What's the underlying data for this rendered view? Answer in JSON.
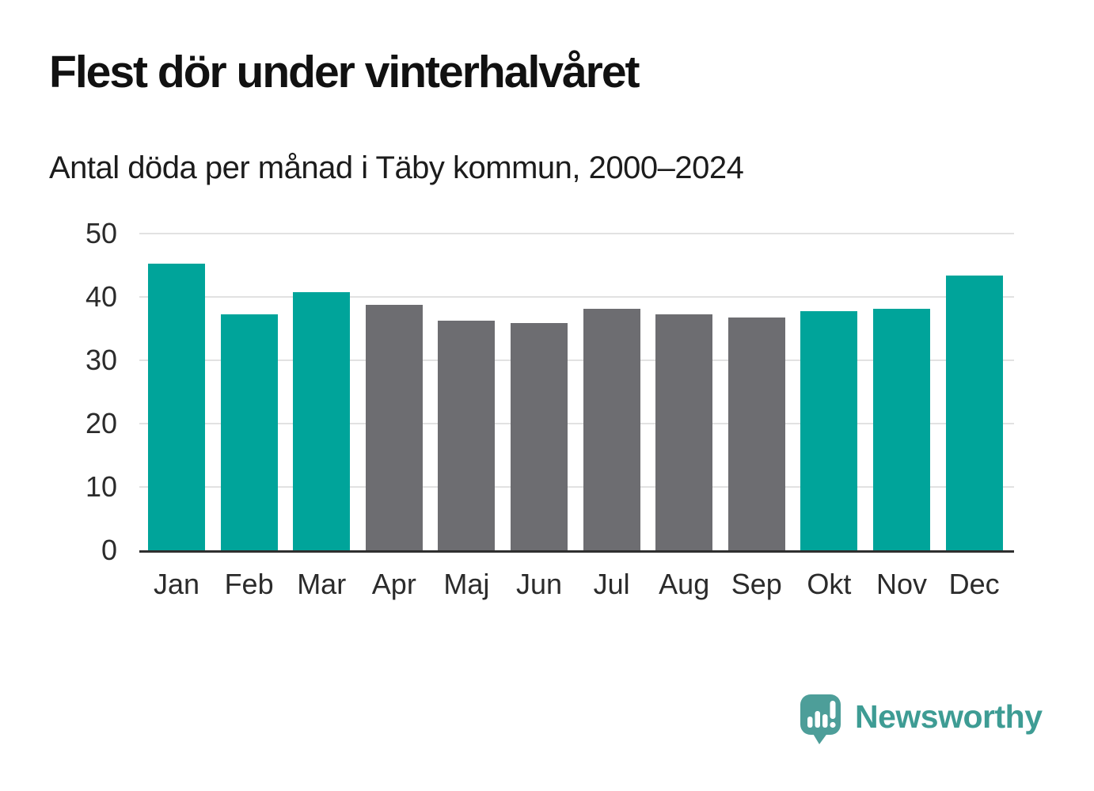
{
  "header": {
    "title": "Flest dör under vinterhalvåret",
    "subtitle": "Antal döda per månad i Täby kommun, 2000–2024"
  },
  "chart_data": {
    "type": "bar",
    "title": "Flest dör under vinterhalvåret",
    "subtitle": "Antal döda per månad i Täby kommun, 2000–2024",
    "categories": [
      "Jan",
      "Feb",
      "Mar",
      "Apr",
      "Maj",
      "Jun",
      "Jul",
      "Aug",
      "Sep",
      "Okt",
      "Nov",
      "Dec"
    ],
    "values": [
      45.3,
      37.3,
      40.8,
      38.8,
      36.3,
      35.9,
      38.1,
      37.3,
      36.8,
      37.7,
      38.1,
      43.4
    ],
    "bar_seasons": [
      "winter",
      "winter",
      "winter",
      "summer",
      "summer",
      "summer",
      "summer",
      "summer",
      "summer",
      "winter",
      "winter",
      "winter"
    ],
    "yticks": [
      0,
      10,
      20,
      30,
      40,
      50
    ],
    "ylim": [
      0,
      50
    ],
    "xlabel": "",
    "ylabel": "",
    "grid": true,
    "legend_position": "none"
  },
  "colors": {
    "winter": "#00a49a",
    "summer": "#6d6d71",
    "axis": "#2f2f2f",
    "grid": "#e2e2e2",
    "tick_text": "#2b2b2b",
    "title_text": "#111111",
    "logo_bubble": "#4d9e99",
    "logo_text": "#3e9c94"
  },
  "branding": {
    "logo_text": "Newsworthy",
    "logo_icon": "newsworthy-speech-bubble-barchart-icon"
  }
}
